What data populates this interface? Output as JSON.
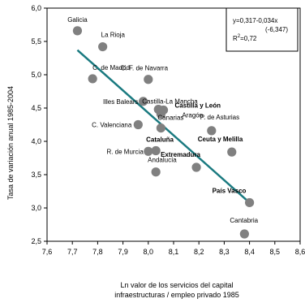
{
  "chart_data": {
    "type": "scatter",
    "xlabel_lines": [
      "Ln valor de los servicios del capital",
      "infraestructuras / empleo privado 1985"
    ],
    "ylabel": "Tasa de variación anual 1985-2004",
    "xlim": [
      7.6,
      8.6
    ],
    "ylim": [
      2.5,
      6.0
    ],
    "x_ticks": [
      "7,6",
      "7,7",
      "7,8",
      "7,9",
      "8,0",
      "8,1",
      "8,2",
      "8,3",
      "8,4",
      "8,5",
      "8,6"
    ],
    "y_ticks": [
      "2,5",
      "3,0",
      "3,5",
      "4,0",
      "4,5",
      "5,0",
      "5,5",
      "6,0"
    ],
    "grid": false,
    "marker_color": "#808080",
    "trend_color": "#1a7a80",
    "points": [
      {
        "label": "Galicia",
        "x": 7.72,
        "y": 5.66,
        "bold": false
      },
      {
        "label": "La Rioja",
        "x": 7.82,
        "y": 5.42,
        "bold": false
      },
      {
        "label": "C. de Madrid",
        "x": 7.78,
        "y": 4.94,
        "bold": false
      },
      {
        "label": "C. F. de Navarra",
        "x": 8.0,
        "y": 4.93,
        "bold": false
      },
      {
        "label": "Illes Balears",
        "x": 7.98,
        "y": 4.6,
        "bold": false
      },
      {
        "label": "Castilla-La Mancha",
        "x": 8.04,
        "y": 4.48,
        "bold": false
      },
      {
        "label": "Castilla y León",
        "x": 8.06,
        "y": 4.47,
        "bold": true
      },
      {
        "label": "Aragón",
        "x": 8.05,
        "y": 4.41,
        "bold": false
      },
      {
        "label": "Canarias",
        "x": 8.05,
        "y": 4.2,
        "bold": false
      },
      {
        "label": "P. de Asturias",
        "x": 8.25,
        "y": 4.16,
        "bold": false
      },
      {
        "label": "C. Valenciana",
        "x": 7.96,
        "y": 4.25,
        "bold": false
      },
      {
        "label": "Cataluña",
        "x": 8.03,
        "y": 3.86,
        "bold": true
      },
      {
        "label": "R. de Murcia",
        "x": 8.0,
        "y": 3.85,
        "bold": false
      },
      {
        "label": "Ceuta y Melilla",
        "x": 8.33,
        "y": 3.84,
        "bold": true
      },
      {
        "label": "Andalucía",
        "x": 8.03,
        "y": 3.54,
        "bold": false
      },
      {
        "label": "Extremadura",
        "x": 8.19,
        "y": 3.61,
        "bold": true
      },
      {
        "label": "País Vasco",
        "x": 8.4,
        "y": 3.08,
        "bold": true
      },
      {
        "label": "Cantabria",
        "x": 8.38,
        "y": 2.61,
        "bold": false
      }
    ],
    "trend": {
      "x_start": 7.72,
      "y_start": 5.37,
      "x_end": 8.4,
      "y_end": 3.08
    },
    "equation_lines": [
      "y=0,317-0,034x",
      "(-6,347)"
    ],
    "r2_prefix": "R",
    "r2_exp": "2",
    "r2_value": "=0,72"
  }
}
